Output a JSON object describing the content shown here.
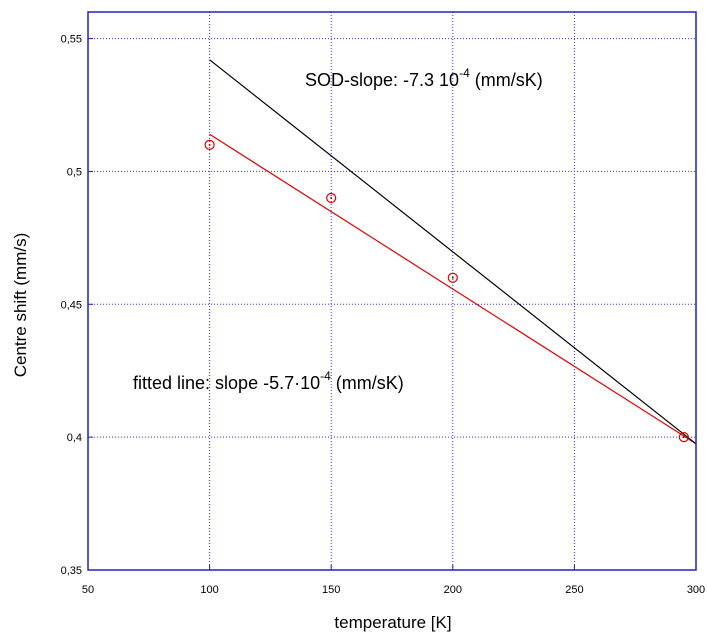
{
  "chart_data": {
    "type": "scatter",
    "xlabel": "temperature [K]",
    "ylabel": "Centre shift (mm/s)",
    "xlim": [
      50,
      300
    ],
    "ylim": [
      0.35,
      0.56
    ],
    "x_ticks": [
      "50",
      "100",
      "150",
      "200",
      "250",
      "300"
    ],
    "y_ticks": [
      "0,35",
      "0,4",
      "0,45",
      "0,5",
      "0,55"
    ],
    "grid": true,
    "series": [
      {
        "kind": "points",
        "marker": "open-circle",
        "color": "#e00000",
        "x": [
          100,
          150,
          200,
          295
        ],
        "y": [
          0.51,
          0.49,
          0.46,
          0.4
        ]
      },
      {
        "kind": "line",
        "color": "#e00000",
        "x": [
          100,
          300
        ],
        "y": [
          0.514,
          0.3975
        ]
      },
      {
        "kind": "line",
        "color": "#000000",
        "x": [
          100,
          300
        ],
        "y": [
          0.542,
          0.3975
        ]
      }
    ],
    "annotations": [
      {
        "text": "SOD-slope: -7.3 10",
        "sup": "-4",
        "suffix": " (mm/sK)"
      },
      {
        "text": "fitted line: slope -5.7·10",
        "sup": "-4",
        "suffix": " (mm/sK)"
      }
    ],
    "colors": {
      "frame": "#2020c0",
      "grid": "#3030ff"
    }
  }
}
